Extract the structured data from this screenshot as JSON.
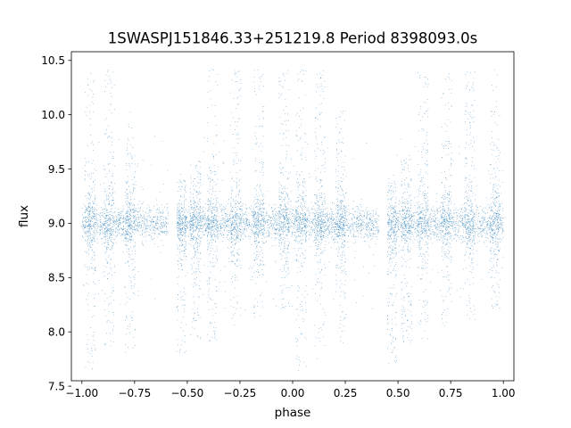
{
  "chart_data": {
    "type": "scatter",
    "title": "1SWASPJ151846.33+251219.8 Period 8398093.0s",
    "xlabel": "phase",
    "ylabel": "flux",
    "xlim": [
      -1.05,
      1.05
    ],
    "ylim": [
      7.55,
      10.58
    ],
    "xticks": [
      -1.0,
      -0.75,
      -0.5,
      -0.25,
      0.0,
      0.25,
      0.5,
      0.75,
      1.0
    ],
    "xtick_labels": [
      "−1.00",
      "−0.75",
      "−0.50",
      "−0.25",
      "0.00",
      "0.25",
      "0.50",
      "0.75",
      "1.00"
    ],
    "yticks": [
      7.5,
      8.0,
      8.5,
      9.0,
      9.5,
      10.0,
      10.5
    ],
    "ytick_labels": [
      "7.5",
      "8.0",
      "8.5",
      "9.0",
      "9.5",
      "10.0",
      "10.5"
    ],
    "grid": false,
    "marker_color": "#1f77b4",
    "series": [
      {
        "phase_range": [
          -1.0,
          1.0
        ],
        "baseline_flux": 9.0,
        "band_halfwidth": 0.25,
        "empty_phase_gaps": [
          [
            -0.59,
            -0.55
          ],
          [
            0.41,
            0.45
          ]
        ],
        "dense_clusters": [
          {
            "phase": -0.96,
            "flux_range": [
              7.6,
              10.42
            ]
          },
          {
            "phase": -0.87,
            "flux_range": [
              7.85,
              10.42
            ]
          },
          {
            "phase": -0.77,
            "flux_range": [
              7.8,
              10.05
            ]
          },
          {
            "phase": -0.53,
            "flux_range": [
              7.8,
              9.4
            ]
          },
          {
            "phase": -0.46,
            "flux_range": [
              7.9,
              9.6
            ]
          },
          {
            "phase": -0.38,
            "flux_range": [
              7.9,
              10.42
            ]
          },
          {
            "phase": -0.27,
            "flux_range": [
              8.05,
              10.4
            ]
          },
          {
            "phase": -0.16,
            "flux_range": [
              8.1,
              10.42
            ]
          },
          {
            "phase": -0.04,
            "flux_range": [
              8.2,
              10.42
            ]
          },
          {
            "phase": 0.04,
            "flux_range": [
              7.6,
              10.42
            ]
          },
          {
            "phase": 0.13,
            "flux_range": [
              7.75,
              10.42
            ]
          },
          {
            "phase": 0.23,
            "flux_range": [
              7.9,
              10.05
            ]
          },
          {
            "phase": 0.47,
            "flux_range": [
              7.7,
              9.4
            ]
          },
          {
            "phase": 0.54,
            "flux_range": [
              7.9,
              9.6
            ]
          },
          {
            "phase": 0.62,
            "flux_range": [
              7.9,
              10.42
            ]
          },
          {
            "phase": 0.73,
            "flux_range": [
              8.05,
              10.4
            ]
          },
          {
            "phase": 0.84,
            "flux_range": [
              8.1,
              10.42
            ]
          },
          {
            "phase": 0.96,
            "flux_range": [
              8.2,
              10.42
            ]
          }
        ]
      }
    ]
  }
}
